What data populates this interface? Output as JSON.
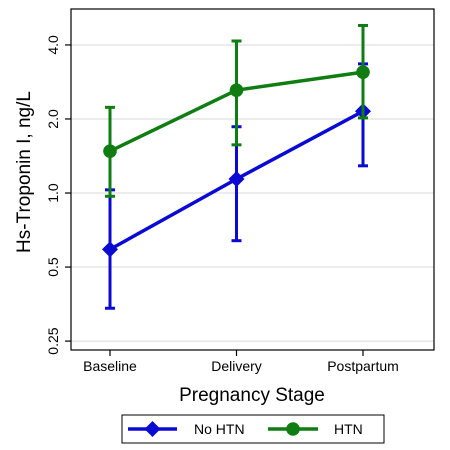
{
  "chart_data": {
    "type": "line",
    "title": "",
    "xlabel": "Pregnancy Stage",
    "ylabel": "Hs-Troponin I, ng/L",
    "y_scale": "log",
    "ylim": [
      0.23,
      5.6
    ],
    "categories": [
      "Baseline",
      "Delivery",
      "Postpartum"
    ],
    "y_ticks": [
      0.25,
      0.5,
      1.0,
      2.0,
      4.0
    ],
    "y_tick_labels": [
      "0.25",
      "0.5",
      "1.0",
      "2.0",
      "4.0"
    ],
    "grid": "horizontal",
    "legend_position": "bottom",
    "series": [
      {
        "name": "No HTN",
        "color": "#0a0ad2",
        "marker": "diamond",
        "values": [
          0.59,
          1.14,
          2.15
        ],
        "ci_low": [
          0.34,
          0.64,
          1.29
        ],
        "ci_high": [
          1.03,
          1.86,
          3.35
        ]
      },
      {
        "name": "HTN",
        "color": "#0f7d12",
        "marker": "circle",
        "values": [
          1.48,
          2.62,
          3.1
        ],
        "ci_low": [
          0.97,
          1.57,
          2.02
        ],
        "ci_high": [
          2.23,
          4.15,
          4.8
        ]
      }
    ]
  }
}
